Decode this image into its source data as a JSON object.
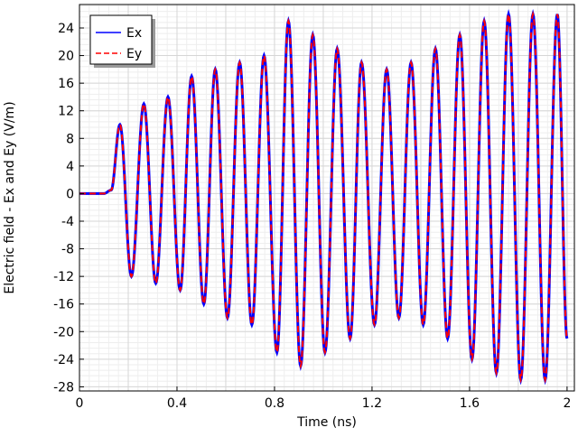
{
  "chart_data": {
    "type": "line",
    "title": "",
    "xlabel": "Time (ns)",
    "ylabel": "Electric field - Ex and Ey (V/m)",
    "xlim": [
      0,
      2.03
    ],
    "ylim": [
      -28.6,
      27.4
    ],
    "x_ticks": [
      0,
      0.4,
      0.8,
      1.2,
      1.6,
      2
    ],
    "x_tick_labels": [
      "0",
      "0.4",
      "0.8",
      "1.2",
      "1.6",
      "2"
    ],
    "y_ticks": [
      24,
      20,
      16,
      12,
      8,
      4,
      0,
      -4,
      -8,
      -12,
      -16,
      -20,
      -24,
      -28
    ],
    "y_tick_labels": [
      "24",
      "20",
      "16",
      "12",
      "8",
      "4",
      "0",
      "-4",
      "-8",
      "-12",
      "-16",
      "-20",
      "-24",
      "-28"
    ],
    "grid": true,
    "legend": {
      "placement": "top-left"
    },
    "series": [
      {
        "name": "Ex",
        "color": "#0000ff",
        "style": "solid"
      },
      {
        "name": "Ey",
        "color": "#ff0000",
        "style": "dashed"
      }
    ],
    "x": [
      0,
      0.1,
      0.13,
      0.166,
      0.213,
      0.264,
      0.313,
      0.363,
      0.413,
      0.46,
      0.51,
      0.557,
      0.607,
      0.657,
      0.707,
      0.757,
      0.81,
      0.857,
      0.907,
      0.957,
      1.007,
      1.057,
      1.11,
      1.157,
      1.21,
      1.26,
      1.31,
      1.36,
      1.41,
      1.46,
      1.51,
      1.56,
      1.61,
      1.66,
      1.71,
      1.76,
      1.81,
      1.86,
      1.91,
      1.96,
      2.0
    ],
    "y": [
      0,
      0,
      0.5,
      10,
      -12,
      13,
      -13,
      14,
      -14,
      17,
      -16,
      18,
      -18,
      19,
      -19,
      20,
      -23,
      25,
      -25,
      23,
      -23,
      21,
      -21,
      19,
      -19,
      18,
      -18,
      19,
      -19,
      21,
      -21,
      23,
      -24,
      25,
      -26,
      26,
      -27,
      26,
      -27,
      26,
      -21
    ]
  }
}
